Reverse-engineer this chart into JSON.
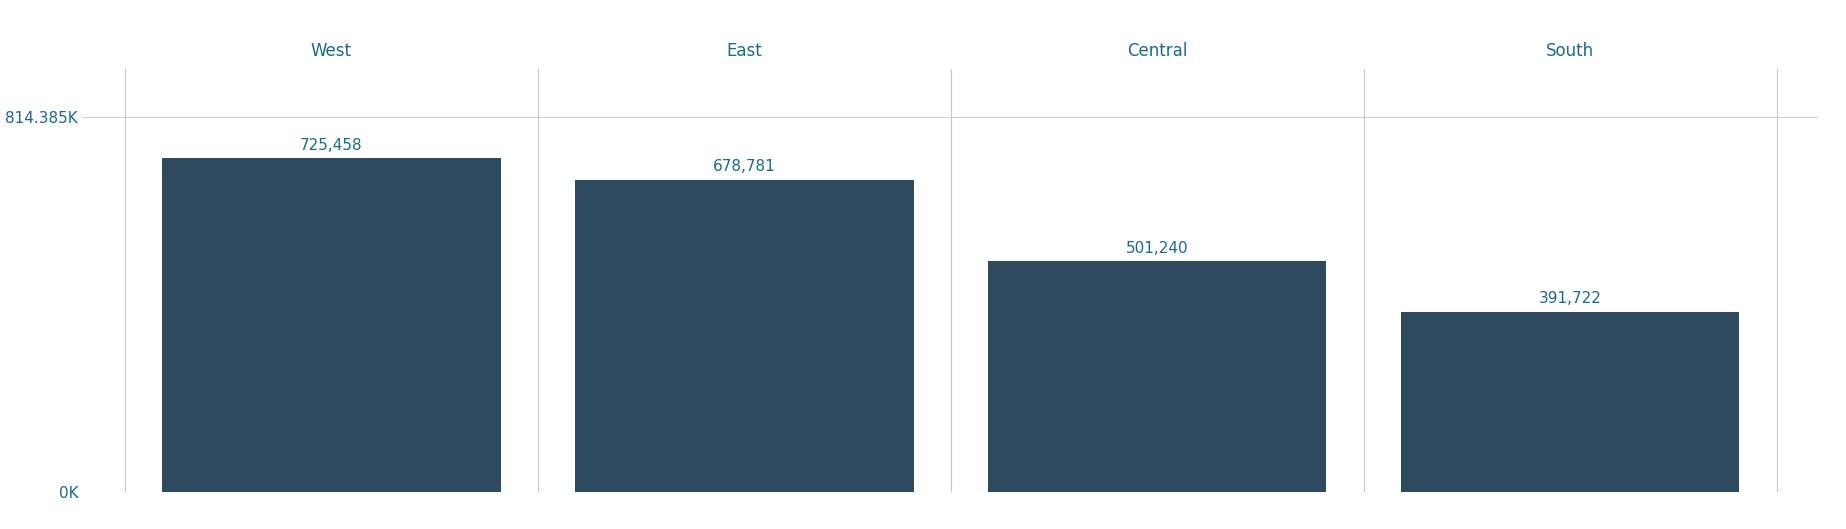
{
  "categories": [
    "West",
    "East",
    "Central",
    "South"
  ],
  "values": [
    725458,
    678781,
    501240,
    391722
  ],
  "bar_color": "#2d4a5e",
  "label_color": "#1a6b8a",
  "axis_label_color": "#1a6b8a",
  "tick_color": "#1a6b8a",
  "background_color": "#ffffff",
  "ymax": 814385,
  "ytick_top": "814.385K",
  "ytick_bottom": "0K",
  "bar_labels": [
    "725,458",
    "678,781",
    "501,240",
    "391,722"
  ],
  "label_fontsize": 11,
  "category_fontsize": 12,
  "ylabel_fontsize": 11,
  "tick_fontsize": 11,
  "grid_color": "#d0d0d0",
  "separator_color": "#c8c8c8"
}
